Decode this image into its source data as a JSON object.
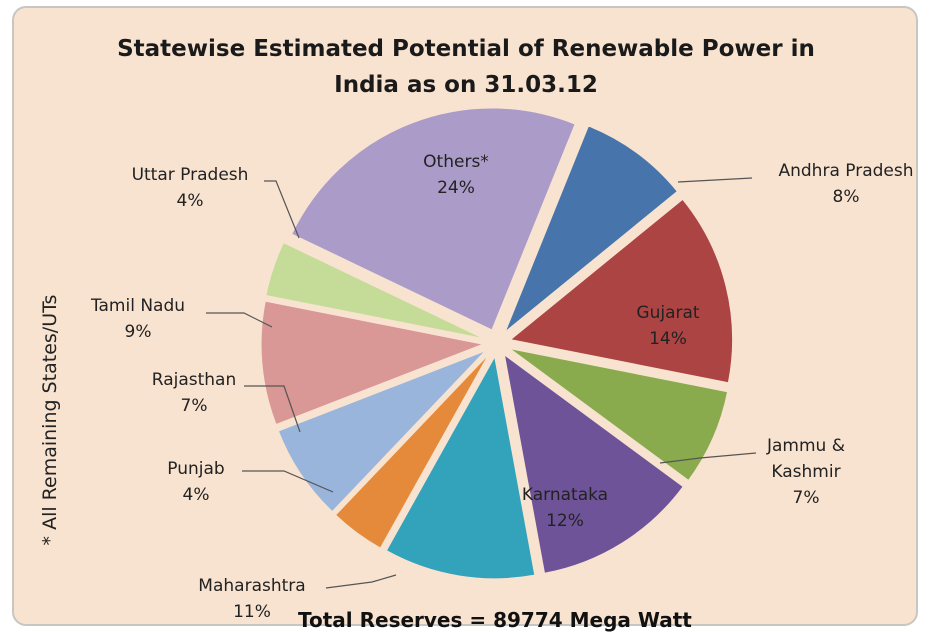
{
  "chart_data": {
    "type": "pie",
    "title_lines": [
      "Statewise Estimated Potential of Renewable Power in",
      "India as on 31.03.12"
    ],
    "slices": [
      {
        "name": "Andhra Pradesh",
        "value": 8,
        "label": "8%",
        "color": "#4775ab"
      },
      {
        "name": "Gujarat",
        "value": 14,
        "label": "14%",
        "color": "#ab4442"
      },
      {
        "name": "Jammu & Kashmir",
        "name_lines": [
          "Jammu &",
          "Kashmir"
        ],
        "value": 7,
        "label": "7%",
        "color": "#8aab4d"
      },
      {
        "name": "Karnataka",
        "value": 12,
        "label": "12%",
        "color": "#6f5398"
      },
      {
        "name": "Maharashtra",
        "value": 11,
        "label": "11%",
        "color": "#33a2bb"
      },
      {
        "name": "Punjab",
        "value": 4,
        "label": "4%",
        "color": "#e48a3a"
      },
      {
        "name": "Rajasthan",
        "value": 7,
        "label": "7%",
        "color": "#99b5dc"
      },
      {
        "name": "Tamil Nadu",
        "value": 9,
        "label": "9%",
        "color": "#d99796"
      },
      {
        "name": "Uttar Pradesh",
        "value": 4,
        "label": "4%",
        "color": "#c4dc97"
      },
      {
        "name": "Others*",
        "value": 24,
        "label": "24%",
        "color": "#ab9bc9"
      }
    ],
    "footer": "Total  Reserves = 89774 Mega Watt",
    "side_note": "* All Remaining States/UTs"
  }
}
